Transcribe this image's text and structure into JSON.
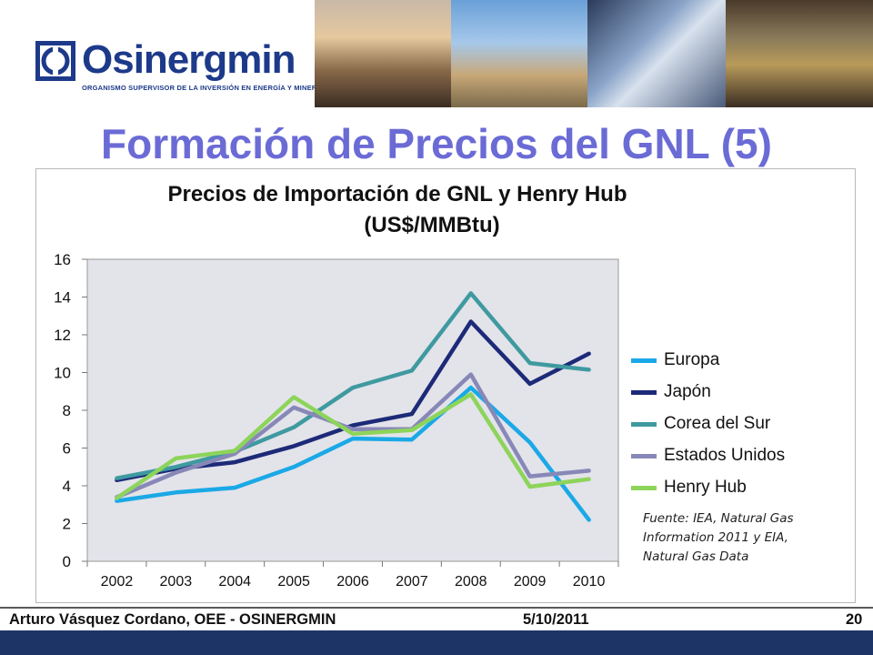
{
  "header": {
    "logo_name": "Osinergmin",
    "logo_subtitle": "ORGANISMO SUPERVISOR DE LA INVERSIÓN EN ENERGÍA Y MINERÍA",
    "brand_color": "#1d3a8a",
    "photos": [
      "sunset-power-lines-photo",
      "drilling-rig-photo",
      "welding-pipeline-photo",
      "mine-tunnel-photo"
    ]
  },
  "slide": {
    "title": "Formación de Precios del GNL (5)",
    "title_color": "#6b6bd6"
  },
  "chart_data": {
    "type": "line",
    "title": "Precios de Importación de GNL y Henry Hub",
    "subtitle": "(US$/MMBtu)",
    "x": [
      "2002",
      "2003",
      "2004",
      "2005",
      "2006",
      "2007",
      "2008",
      "2009",
      "2010"
    ],
    "xlabel": "",
    "ylabel": "",
    "ylim": [
      0,
      16
    ],
    "yticks": [
      "0",
      "2",
      "4",
      "6",
      "8",
      "10",
      "12",
      "14",
      "16"
    ],
    "grid": false,
    "plot_background": "#e3e3ea",
    "legend_position": "right",
    "series": [
      {
        "name": "Europa",
        "color": "#1aa9e6",
        "values": [
          3.2,
          3.65,
          3.9,
          5.0,
          6.5,
          6.45,
          9.2,
          6.3,
          2.2
        ]
      },
      {
        "name": "Japón",
        "color": "#1c2a78",
        "values": [
          4.3,
          4.9,
          5.25,
          6.1,
          7.2,
          7.8,
          12.7,
          9.4,
          11.0
        ]
      },
      {
        "name": "Corea del Sur",
        "color": "#3f9aa0",
        "values": [
          4.4,
          5.0,
          5.8,
          7.1,
          9.2,
          10.1,
          14.2,
          10.5,
          10.15
        ]
      },
      {
        "name": "Estados Unidos",
        "color": "#8888b8",
        "values": [
          3.4,
          4.7,
          5.7,
          8.15,
          7.0,
          7.0,
          9.9,
          4.5,
          4.8
        ]
      },
      {
        "name": "Henry Hub",
        "color": "#8dd45a",
        "values": [
          3.35,
          5.45,
          5.85,
          8.7,
          6.75,
          6.95,
          8.85,
          3.95,
          4.35
        ]
      }
    ],
    "source_lines": [
      "Fuente: IEA, Natural Gas",
      "Information 2011 y EIA,",
      "Natural Gas Data"
    ]
  },
  "footer": {
    "author": "Arturo Vásquez Cordano, OEE - OSINERGMIN",
    "date": "5/10/2011",
    "page": "20",
    "bar_color": "#1c3566"
  }
}
